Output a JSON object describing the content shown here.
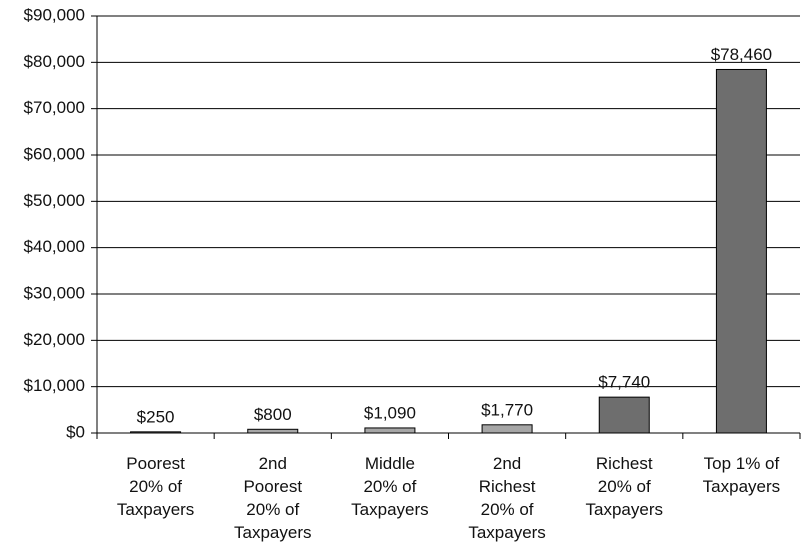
{
  "chart_data": {
    "type": "bar",
    "categories": [
      "Poorest\n20% of\nTaxpayers",
      "2nd\nPoorest\n20% of\nTaxpayers",
      "Middle\n20% of\nTaxpayers",
      "2nd\nRichest\n20% of\nTaxpayers",
      "Richest\n20% of\nTaxpayers",
      "Top 1% of\nTaxpayers"
    ],
    "values": [
      250,
      800,
      1090,
      1770,
      7740,
      78460
    ],
    "value_labels": [
      "$250",
      "$800",
      "$1,090",
      "$1,770",
      "$7,740",
      "$78,460"
    ],
    "colors": [
      "#a6a6a6",
      "#a6a6a6",
      "#a6a6a6",
      "#a6a6a6",
      "#6e6e6e",
      "#6e6e6e"
    ],
    "ylim": [
      0,
      90000
    ],
    "yticks": [
      {
        "value": 0,
        "label": "$0"
      },
      {
        "value": 10000,
        "label": "$10,000"
      },
      {
        "value": 20000,
        "label": "$20,000"
      },
      {
        "value": 30000,
        "label": "$30,000"
      },
      {
        "value": 40000,
        "label": "$40,000"
      },
      {
        "value": 50000,
        "label": "$50,000"
      },
      {
        "value": 60000,
        "label": "$60,000"
      },
      {
        "value": 70000,
        "label": "$70,000"
      },
      {
        "value": 80000,
        "label": "$80,000"
      },
      {
        "value": 90000,
        "label": "$90,000"
      }
    ],
    "grid": true
  }
}
